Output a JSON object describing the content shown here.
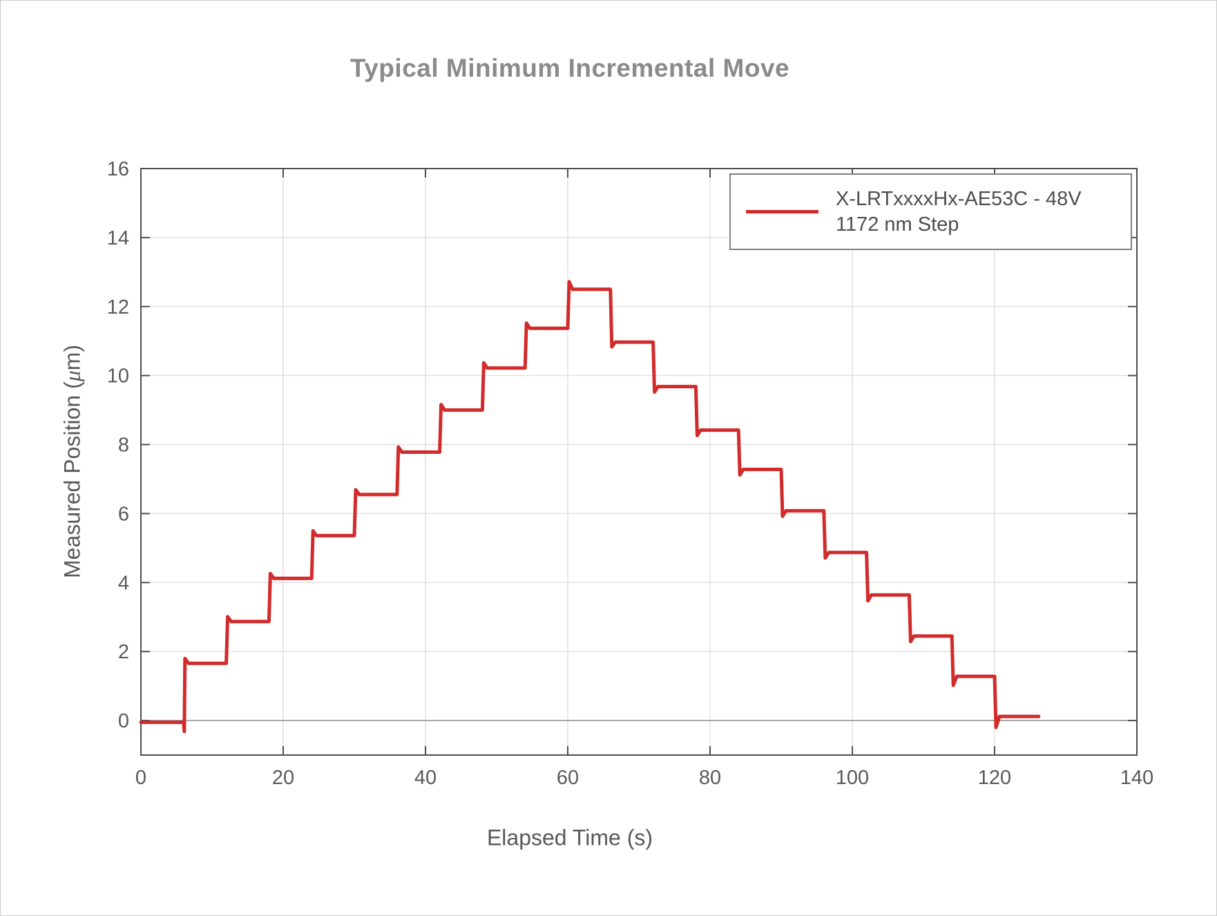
{
  "chart_data": {
    "type": "line",
    "subtype": "step-staircase",
    "title": "Typical Minimum Incremental Move",
    "xlabel": "Elapsed Time (s)",
    "ylabel": "Measured Position (μm)",
    "ylabel_parts": {
      "prefix": "Measured Position (",
      "mu": "μ",
      "suffix": "m)"
    },
    "legend": {
      "label_line1": "X-LRTxxxxHx-AE53C - 48V",
      "label_line2": "1172 nm Step",
      "position": "top-right"
    },
    "series_color": "#d22b2b",
    "axis_color": "#4d4d4d",
    "grid_color": "#e0e0e0",
    "zero_line_color": "#8c8c8c",
    "tick_label_color": "#595959",
    "xlim": [
      0,
      140
    ],
    "ylim": [
      -1,
      16
    ],
    "xticks": [
      0,
      20,
      40,
      60,
      80,
      100,
      120,
      140
    ],
    "yticks": [
      0,
      2,
      4,
      6,
      8,
      10,
      12,
      14,
      16
    ],
    "grid": true,
    "zero_line": true,
    "step_interval_s": 6,
    "t_end": 126.2,
    "start": {
      "t": 0,
      "v": -0.05
    },
    "steps": [
      {
        "t": 6,
        "v": 1.66,
        "spike": 1.8,
        "predip": -0.32
      },
      {
        "t": 12,
        "v": 2.87,
        "spike": 3.01
      },
      {
        "t": 18,
        "v": 4.12,
        "spike": 4.26
      },
      {
        "t": 24,
        "v": 5.36,
        "spike": 5.5
      },
      {
        "t": 30,
        "v": 6.55,
        "spike": 6.69
      },
      {
        "t": 36,
        "v": 7.78,
        "spike": 7.93
      },
      {
        "t": 42,
        "v": 9.0,
        "spike": 9.16
      },
      {
        "t": 48,
        "v": 10.22,
        "spike": 10.37
      },
      {
        "t": 54,
        "v": 11.37,
        "spike": 11.52
      },
      {
        "t": 60,
        "v": 12.5,
        "spike": 12.72
      },
      {
        "t": 66,
        "v": 10.97,
        "spike": 10.83
      },
      {
        "t": 72,
        "v": 9.68,
        "spike": 9.52
      },
      {
        "t": 78,
        "v": 8.42,
        "spike": 8.26
      },
      {
        "t": 84,
        "v": 7.28,
        "spike": 7.12
      },
      {
        "t": 90,
        "v": 6.08,
        "spike": 5.92
      },
      {
        "t": 96,
        "v": 4.87,
        "spike": 4.71
      },
      {
        "t": 102,
        "v": 3.64,
        "spike": 3.47
      },
      {
        "t": 108,
        "v": 2.45,
        "spike": 2.29
      },
      {
        "t": 114,
        "v": 1.28,
        "spike": 1.02
      },
      {
        "t": 120,
        "v": 0.12,
        "spike": -0.2
      }
    ]
  }
}
